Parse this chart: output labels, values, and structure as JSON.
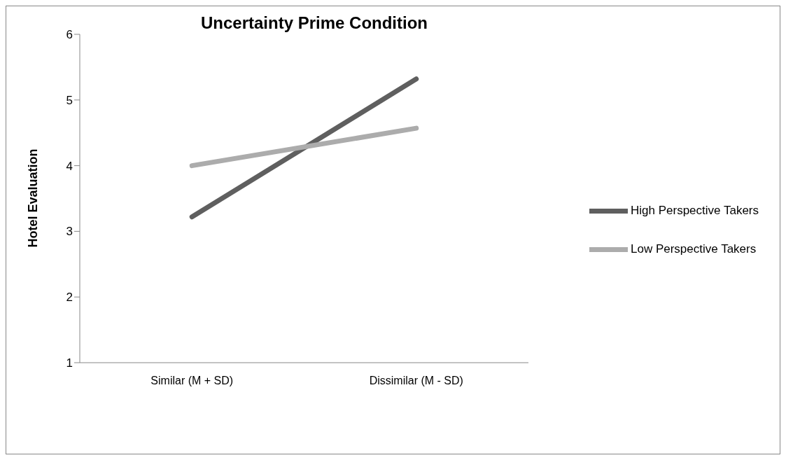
{
  "chart_data": {
    "type": "line",
    "title": "Uncertainty Prime Condition",
    "ylabel": "Hotel Evaluation",
    "categories": [
      "Similar (M + SD)",
      "Dissimilar (M - SD)"
    ],
    "series": [
      {
        "name": "High Perspective Takers",
        "color": "#5f5f5f",
        "values": [
          3.22,
          5.32
        ]
      },
      {
        "name": "Low Perspective Takers",
        "color": "#acacac",
        "values": [
          4.0,
          4.57
        ]
      }
    ],
    "ylim": [
      1,
      6
    ],
    "yticks": [
      1,
      2,
      3,
      4,
      5,
      6
    ],
    "grid": false,
    "legend": "right",
    "marker": "none",
    "line_style": "solid"
  }
}
